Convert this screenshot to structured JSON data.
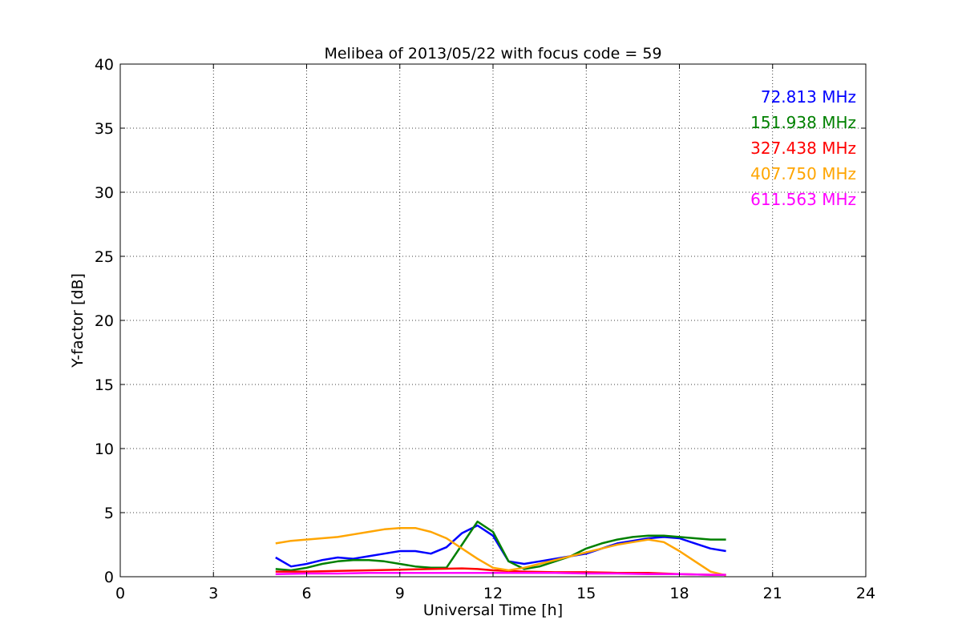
{
  "chart_data": {
    "type": "line",
    "title": "Melibea of 2013/05/22 with focus code = 59",
    "xlabel": "Universal Time [h]",
    "ylabel": "Y-factor [dB]",
    "xlim": [
      0,
      24
    ],
    "ylim": [
      0,
      40
    ],
    "xticks": [
      0,
      3,
      6,
      9,
      12,
      15,
      18,
      21,
      24
    ],
    "xtick_labels": [
      "0",
      "3",
      "6",
      "9",
      "12",
      "15",
      "18",
      "21",
      "24"
    ],
    "yticks": [
      0,
      5,
      10,
      15,
      20,
      25,
      30,
      35,
      40
    ],
    "ytick_labels": [
      "0",
      "5",
      "10",
      "15",
      "20",
      "25",
      "30",
      "35",
      "40"
    ],
    "grid": true,
    "legend_position": "top-right",
    "series": [
      {
        "name": "72.813 MHz",
        "color": "#0000ff",
        "x": [
          5.0,
          5.5,
          6.0,
          6.5,
          7.0,
          7.5,
          8.0,
          8.5,
          9.0,
          9.5,
          10.0,
          10.5,
          11.0,
          11.5,
          12.0,
          12.5,
          13.0,
          13.5,
          14.0,
          14.5,
          15.0,
          15.5,
          16.0,
          16.5,
          17.0,
          17.5,
          18.0,
          18.5,
          19.0,
          19.5
        ],
        "y": [
          1.5,
          0.8,
          1.0,
          1.3,
          1.5,
          1.4,
          1.6,
          1.8,
          2.0,
          2.0,
          1.8,
          2.3,
          3.4,
          4.0,
          3.2,
          1.2,
          1.0,
          1.2,
          1.4,
          1.6,
          1.8,
          2.2,
          2.6,
          2.8,
          3.0,
          3.1,
          3.0,
          2.6,
          2.2,
          2.0
        ]
      },
      {
        "name": "151.938 MHz",
        "color": "#008000",
        "x": [
          5.0,
          5.5,
          6.0,
          6.5,
          7.0,
          7.5,
          8.0,
          8.5,
          9.0,
          9.5,
          10.0,
          10.5,
          11.0,
          11.5,
          12.0,
          12.5,
          13.0,
          13.5,
          14.0,
          14.5,
          15.0,
          15.5,
          16.0,
          16.5,
          17.0,
          17.5,
          18.0,
          18.5,
          19.0,
          19.5
        ],
        "y": [
          0.6,
          0.5,
          0.7,
          1.0,
          1.2,
          1.3,
          1.3,
          1.2,
          1.0,
          0.8,
          0.7,
          0.7,
          2.5,
          4.3,
          3.5,
          1.2,
          0.6,
          0.8,
          1.2,
          1.6,
          2.2,
          2.6,
          2.9,
          3.1,
          3.2,
          3.2,
          3.1,
          3.0,
          2.9,
          2.9
        ]
      },
      {
        "name": "327.438 MHz",
        "color": "#ff0000",
        "x": [
          5.0,
          6.0,
          7.0,
          8.0,
          9.0,
          10.0,
          11.0,
          11.5,
          12.0,
          13.0,
          14.0,
          15.0,
          16.0,
          17.0,
          18.0,
          19.0,
          19.5
        ],
        "y": [
          0.4,
          0.4,
          0.45,
          0.5,
          0.55,
          0.6,
          0.65,
          0.6,
          0.5,
          0.4,
          0.35,
          0.35,
          0.3,
          0.3,
          0.2,
          0.15,
          0.15
        ]
      },
      {
        "name": "407.750 MHz",
        "color": "#ffa500",
        "x": [
          5.0,
          5.5,
          6.0,
          6.5,
          7.0,
          7.5,
          8.0,
          8.5,
          9.0,
          9.5,
          10.0,
          10.5,
          11.0,
          11.5,
          12.0,
          12.5,
          13.0,
          13.5,
          14.0,
          14.5,
          15.0,
          15.5,
          16.0,
          16.5,
          17.0,
          17.5,
          18.0,
          18.5,
          19.0,
          19.5
        ],
        "y": [
          2.6,
          2.8,
          2.9,
          3.0,
          3.1,
          3.3,
          3.5,
          3.7,
          3.8,
          3.8,
          3.5,
          3.0,
          2.2,
          1.4,
          0.7,
          0.5,
          0.7,
          1.0,
          1.3,
          1.6,
          1.9,
          2.2,
          2.5,
          2.7,
          2.9,
          2.7,
          2.0,
          1.2,
          0.4,
          0.1
        ]
      },
      {
        "name": "611.563 MHz",
        "color": "#ff00ff",
        "x": [
          5.0,
          6.0,
          7.0,
          8.0,
          9.0,
          10.0,
          11.0,
          12.0,
          13.0,
          14.0,
          15.0,
          16.0,
          17.0,
          18.0,
          19.0,
          19.5
        ],
        "y": [
          0.2,
          0.25,
          0.25,
          0.3,
          0.3,
          0.3,
          0.3,
          0.3,
          0.3,
          0.3,
          0.25,
          0.25,
          0.2,
          0.2,
          0.15,
          0.15
        ]
      }
    ]
  }
}
